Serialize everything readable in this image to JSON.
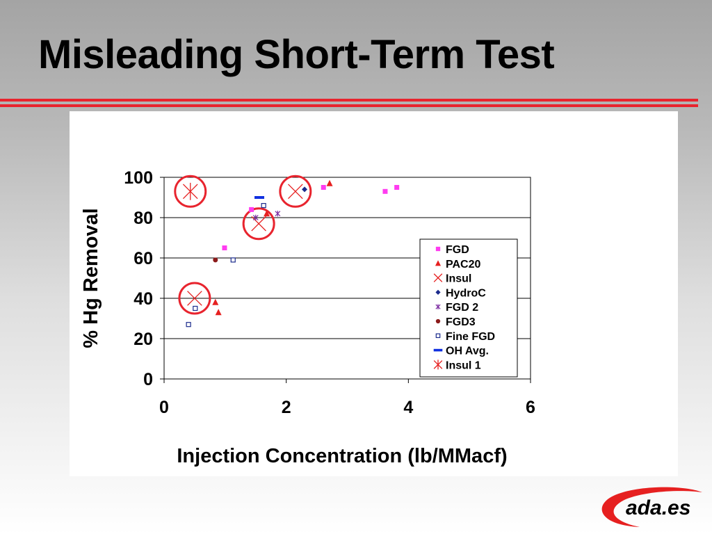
{
  "slide": {
    "title": "Misleading Short-Term Test"
  },
  "colors": {
    "accent_rule": "#e8242e",
    "highlight_circle": "#e8242e",
    "fgd": "#ff3cf0",
    "pac20": "#e62020",
    "insul": "#e62020",
    "hydroc": "#1a2a8c",
    "fgd2": "#7a2aa0",
    "fgd3": "#8b1a1a",
    "fine_fgd": "#1a2a8c",
    "oh_avg": "#1030e0",
    "insul1": "#e62020"
  },
  "logo": {
    "text": "ada.es"
  },
  "chart_data": {
    "type": "scatter",
    "title": "",
    "xlabel": "Injection Concentration (lb/MMacf)",
    "ylabel": "% Hg Removal",
    "xlim": [
      0,
      6
    ],
    "ylim": [
      0,
      100
    ],
    "x_ticks": [
      0,
      2,
      4,
      6
    ],
    "y_ticks": [
      0,
      20,
      40,
      60,
      80,
      100
    ],
    "grid": "horizontal",
    "legend_position": "right",
    "series": [
      {
        "name": "FGD",
        "marker": "square",
        "color": "#ff3cf0",
        "x": [
          0.99,
          1.43,
          2.61,
          3.62,
          3.81
        ],
        "y": [
          65,
          84,
          95,
          93,
          95
        ]
      },
      {
        "name": "PAC20",
        "marker": "triangle",
        "color": "#e62020",
        "x": [
          0.84,
          0.89,
          1.68,
          2.71
        ],
        "y": [
          38,
          33,
          82,
          97
        ]
      },
      {
        "name": "Insul",
        "marker": "x",
        "color": "#e62020",
        "x": [
          0.5,
          1.55,
          2.15
        ],
        "y": [
          40,
          77,
          93
        ]
      },
      {
        "name": "HydroC",
        "marker": "diamond",
        "color": "#1a2a8c",
        "x": [
          2.3
        ],
        "y": [
          94
        ]
      },
      {
        "name": "FGD 2",
        "marker": "star",
        "color": "#7a2aa0",
        "x": [
          1.5,
          1.86
        ],
        "y": [
          80,
          82
        ]
      },
      {
        "name": "FGD3",
        "marker": "circle",
        "color": "#8b1a1a",
        "x": [
          0.84
        ],
        "y": [
          59
        ]
      },
      {
        "name": "Fine FGD",
        "marker": "open-square",
        "color": "#1a2a8c",
        "x": [
          0.4,
          0.51,
          1.13,
          1.63
        ],
        "y": [
          27,
          35,
          59,
          86
        ]
      },
      {
        "name": "OH Avg.",
        "marker": "dash",
        "color": "#1030e0",
        "x": [
          1.56
        ],
        "y": [
          90
        ]
      },
      {
        "name": "Insul 1",
        "marker": "asterisk",
        "color": "#e62020",
        "x": [
          0.43
        ],
        "y": [
          93
        ]
      }
    ],
    "highlight_circles": [
      {
        "x": 0.43,
        "y": 93
      },
      {
        "x": 2.15,
        "y": 93
      },
      {
        "x": 1.55,
        "y": 77
      },
      {
        "x": 0.5,
        "y": 40
      }
    ]
  }
}
